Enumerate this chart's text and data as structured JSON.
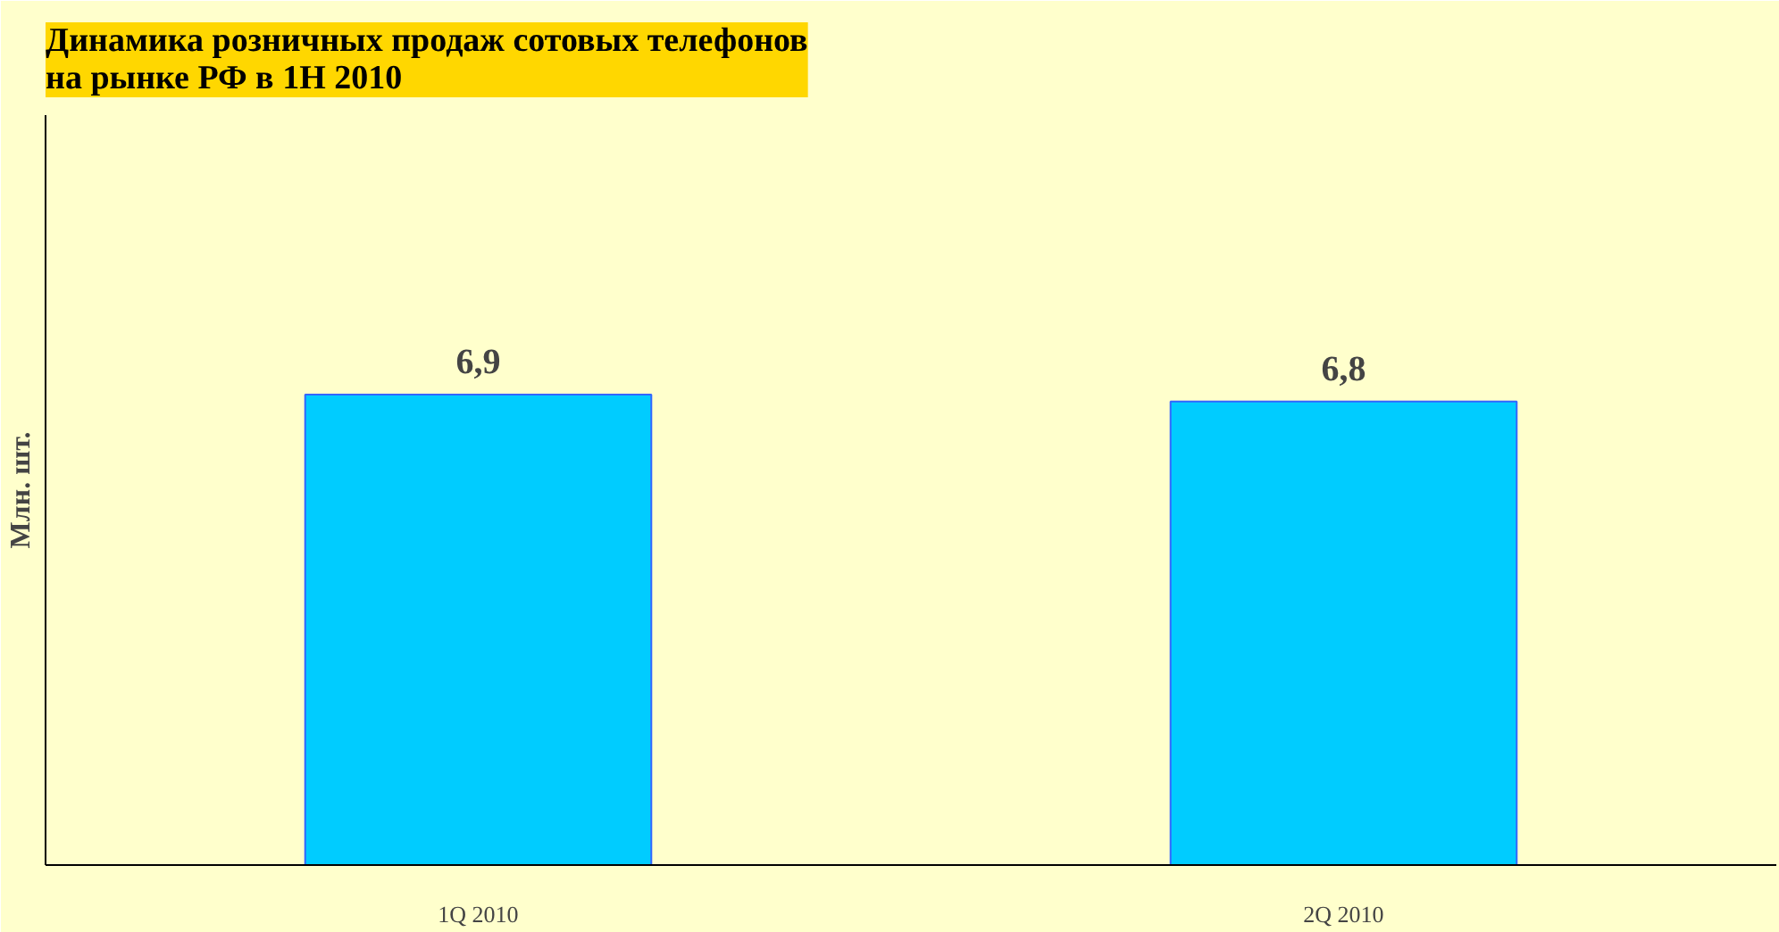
{
  "chart_data": {
    "type": "bar",
    "title": "Динамика розничных продаж сотовых телефонов\nна рынке РФ в 1Н 2010",
    "ylabel": "Млн. шт.",
    "categories": [
      "1Q 2010",
      "2Q 2010"
    ],
    "values": [
      6.9,
      6.8
    ],
    "value_labels": [
      "6,9",
      "6,8"
    ],
    "color": "#00ccff",
    "ylim": [
      0,
      11
    ],
    "grid": false
  }
}
